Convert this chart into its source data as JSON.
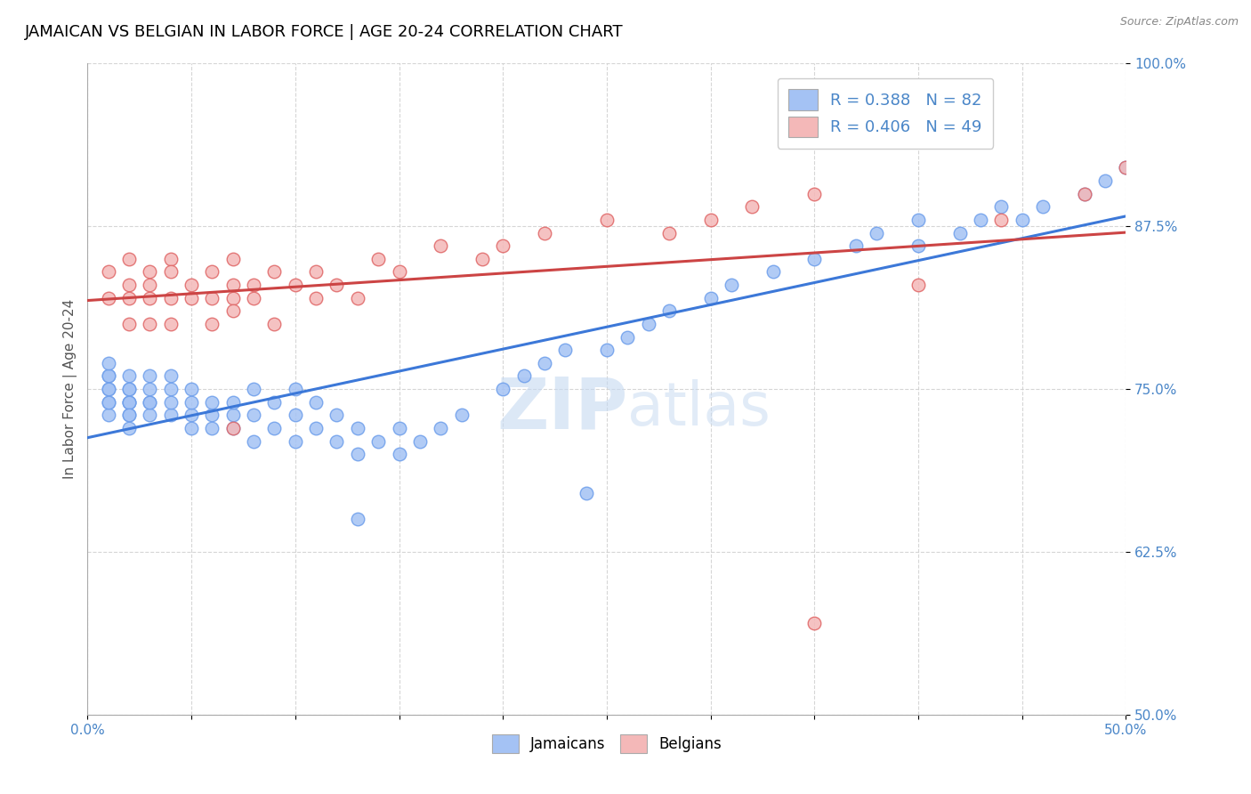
{
  "title": "JAMAICAN VS BELGIAN IN LABOR FORCE | AGE 20-24 CORRELATION CHART",
  "source_text": "Source: ZipAtlas.com",
  "ylabel": "In Labor Force | Age 20-24",
  "xlim": [
    0.0,
    0.5
  ],
  "ylim": [
    0.5,
    1.0
  ],
  "xticks": [
    0.0,
    0.05,
    0.1,
    0.15,
    0.2,
    0.25,
    0.3,
    0.35,
    0.4,
    0.45,
    0.5
  ],
  "yticks": [
    0.5,
    0.625,
    0.75,
    0.875,
    1.0
  ],
  "ytick_labels": [
    "50.0%",
    "62.5%",
    "75.0%",
    "87.5%",
    "100.0%"
  ],
  "R_jamaican": 0.388,
  "N_jamaican": 82,
  "R_belgian": 0.406,
  "N_belgian": 49,
  "blue_color": "#a4c2f4",
  "pink_color": "#f4b8b8",
  "blue_edge_color": "#6d9eeb",
  "pink_edge_color": "#e06666",
  "blue_line_color": "#3c78d8",
  "pink_line_color": "#cc4444",
  "watermark_color": "#d0dff5",
  "title_fontsize": 13,
  "axis_label_fontsize": 11,
  "tick_fontsize": 11,
  "tick_color": "#4a86c8",
  "blue_x": [
    0.01,
    0.01,
    0.01,
    0.01,
    0.01,
    0.01,
    0.01,
    0.01,
    0.02,
    0.02,
    0.02,
    0.02,
    0.02,
    0.02,
    0.02,
    0.02,
    0.02,
    0.03,
    0.03,
    0.03,
    0.03,
    0.03,
    0.04,
    0.04,
    0.04,
    0.04,
    0.05,
    0.05,
    0.05,
    0.05,
    0.06,
    0.06,
    0.06,
    0.07,
    0.07,
    0.07,
    0.08,
    0.08,
    0.08,
    0.09,
    0.09,
    0.1,
    0.1,
    0.1,
    0.11,
    0.11,
    0.12,
    0.12,
    0.13,
    0.13,
    0.14,
    0.15,
    0.15,
    0.16,
    0.17,
    0.18,
    0.2,
    0.21,
    0.22,
    0.23,
    0.25,
    0.26,
    0.27,
    0.28,
    0.3,
    0.31,
    0.33,
    0.35,
    0.37,
    0.38,
    0.4,
    0.4,
    0.42,
    0.43,
    0.44,
    0.45,
    0.46,
    0.48,
    0.49,
    0.5,
    0.24,
    0.13
  ],
  "blue_y": [
    0.75,
    0.76,
    0.74,
    0.73,
    0.76,
    0.75,
    0.74,
    0.77,
    0.74,
    0.75,
    0.73,
    0.72,
    0.74,
    0.76,
    0.75,
    0.74,
    0.73,
    0.74,
    0.75,
    0.73,
    0.74,
    0.76,
    0.73,
    0.75,
    0.74,
    0.76,
    0.73,
    0.74,
    0.72,
    0.75,
    0.73,
    0.72,
    0.74,
    0.73,
    0.74,
    0.72,
    0.71,
    0.73,
    0.75,
    0.72,
    0.74,
    0.71,
    0.73,
    0.75,
    0.72,
    0.74,
    0.71,
    0.73,
    0.7,
    0.72,
    0.71,
    0.7,
    0.72,
    0.71,
    0.72,
    0.73,
    0.75,
    0.76,
    0.77,
    0.78,
    0.78,
    0.79,
    0.8,
    0.81,
    0.82,
    0.83,
    0.84,
    0.85,
    0.86,
    0.87,
    0.88,
    0.86,
    0.87,
    0.88,
    0.89,
    0.88,
    0.89,
    0.9,
    0.91,
    0.92,
    0.67,
    0.65
  ],
  "pink_x": [
    0.01,
    0.01,
    0.02,
    0.02,
    0.02,
    0.02,
    0.03,
    0.03,
    0.03,
    0.03,
    0.04,
    0.04,
    0.04,
    0.04,
    0.05,
    0.05,
    0.06,
    0.06,
    0.06,
    0.07,
    0.07,
    0.07,
    0.07,
    0.08,
    0.08,
    0.09,
    0.09,
    0.1,
    0.11,
    0.11,
    0.12,
    0.13,
    0.14,
    0.15,
    0.17,
    0.19,
    0.2,
    0.22,
    0.25,
    0.28,
    0.3,
    0.32,
    0.35,
    0.4,
    0.44,
    0.48,
    0.5,
    0.07,
    0.35
  ],
  "pink_y": [
    0.82,
    0.84,
    0.83,
    0.85,
    0.8,
    0.82,
    0.84,
    0.82,
    0.8,
    0.83,
    0.85,
    0.82,
    0.8,
    0.84,
    0.83,
    0.82,
    0.84,
    0.82,
    0.8,
    0.83,
    0.85,
    0.82,
    0.81,
    0.83,
    0.82,
    0.8,
    0.84,
    0.83,
    0.82,
    0.84,
    0.83,
    0.82,
    0.85,
    0.84,
    0.86,
    0.85,
    0.86,
    0.87,
    0.88,
    0.87,
    0.88,
    0.89,
    0.9,
    0.83,
    0.88,
    0.9,
    0.92,
    0.72,
    0.57
  ]
}
